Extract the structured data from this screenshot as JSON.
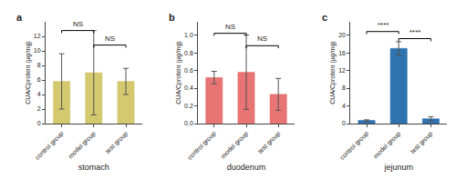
{
  "chart_data": [
    {
      "type": "bar",
      "title": "a",
      "xlabel": "stomach",
      "ylabel": "CUA/Cprotein (μg/mg)",
      "color": "#d4c96e",
      "categories": [
        "control group",
        "model group",
        "test group"
      ],
      "values": [
        5.8,
        7.0,
        5.8
      ],
      "errors": [
        3.8,
        5.8,
        1.8
      ],
      "ylim": [
        0,
        14
      ],
      "yticks": [
        0,
        2,
        4,
        6,
        8,
        10,
        12
      ],
      "grid": false,
      "annotations": [
        {
          "from": "control group",
          "to": "model group",
          "y": 12.8,
          "text": "NS"
        },
        {
          "from": "model group",
          "to": "test group",
          "y": 10.8,
          "text": "NS"
        }
      ]
    },
    {
      "type": "bar",
      "title": "b",
      "xlabel": "duodenum",
      "ylabel": "CUA/Cprotein (μg/mg)",
      "color": "#e87474",
      "categories": [
        "control group",
        "model group",
        "test group"
      ],
      "values": [
        0.52,
        0.58,
        0.33
      ],
      "errors": [
        0.07,
        0.42,
        0.18
      ],
      "ylim": [
        0,
        1.15
      ],
      "yticks": [
        {
          "value": 0,
          "label": "0.0"
        },
        0.2,
        0.4,
        0.6,
        0.8,
        {
          "value": 1,
          "label": "1.0"
        }
      ],
      "grid": false,
      "annotations": [
        {
          "from": "control group",
          "to": "model group",
          "y": 1.02,
          "text": "NS"
        },
        {
          "from": "model group",
          "to": "test group",
          "y": 0.88,
          "text": "NS"
        }
      ]
    },
    {
      "type": "bar",
      "title": "c",
      "xlabel": "jejunum",
      "ylabel": "CUA/Cprotein (μg/mg)",
      "color": "#2e72b0",
      "categories": [
        "control group",
        "model group",
        "test group"
      ],
      "values": [
        0.7,
        17.0,
        1.1
      ],
      "errors": [
        0.15,
        1.5,
        0.45
      ],
      "ylim": [
        0,
        23
      ],
      "yticks": [
        0,
        4,
        8,
        12,
        16,
        20
      ],
      "grid": false,
      "annotations": [
        {
          "from": "control group",
          "to": "model group",
          "y": 20.8,
          "text": "****"
        },
        {
          "from": "model group",
          "to": "test group",
          "y": 19.2,
          "text": "****"
        }
      ]
    }
  ]
}
